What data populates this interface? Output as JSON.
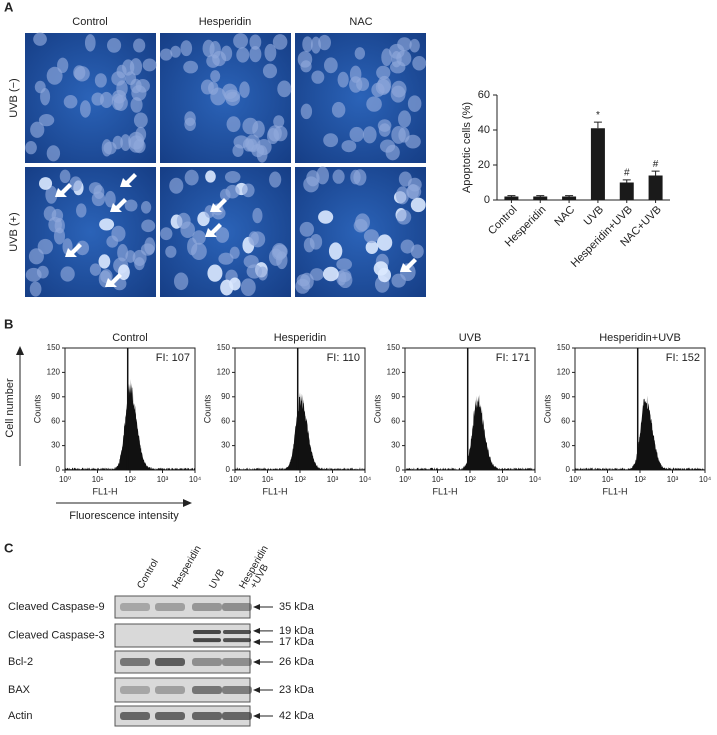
{
  "panel_labels": [
    "A",
    "B",
    "C"
  ],
  "microscopy": {
    "columns": [
      "Control",
      "Hesperidin",
      "NAC"
    ],
    "rows": [
      "UVB (−)",
      "UVB (+)"
    ]
  },
  "flow_axes": {
    "y_label": "Cell number",
    "x_label": "Fluorescence intensity"
  },
  "chart_data": [
    {
      "type": "bar",
      "ylabel": "Apoptotic cells (%)",
      "categories": [
        "Control",
        "Hesperidin",
        "NAC",
        "UVB",
        "Hesperidin+UVB",
        "NAC+UVB"
      ],
      "values": [
        2,
        2,
        2,
        41,
        10,
        14
      ],
      "errors": [
        0.5,
        0.5,
        0.5,
        3.5,
        1.5,
        2.5
      ],
      "annotations": [
        {
          "category": "UVB",
          "text": "*"
        },
        {
          "category": "Hesperidin+UVB",
          "text": "#"
        },
        {
          "category": "NAC+UVB",
          "text": "#"
        }
      ],
      "color": "#1a1a1a",
      "ylim": [
        0,
        60
      ],
      "yticks": [
        0,
        20,
        40,
        60
      ]
    },
    {
      "type": "histogram",
      "title": "Control",
      "annotation": "FI: 107",
      "xlabel": "FL1-H",
      "ylabel": "Counts",
      "peak_x": 100,
      "peak_counts": 110,
      "gate": 85,
      "log_x": true,
      "xlim": [
        1,
        10000
      ],
      "xticks": [
        {
          "value": 1,
          "label": "10⁰"
        },
        {
          "value": 10,
          "label": "10¹"
        },
        {
          "value": 100,
          "label": "10²"
        },
        {
          "value": 1000,
          "label": "10³"
        },
        {
          "value": 10000,
          "label": "10⁴"
        }
      ],
      "ylim": [
        0,
        150
      ],
      "yticks": [
        0,
        30,
        60,
        90,
        120,
        150
      ]
    },
    {
      "type": "histogram",
      "title": "Hesperidin",
      "annotation": "FI: 110",
      "xlabel": "FL1-H",
      "ylabel": "Counts",
      "peak_x": 105,
      "peak_counts": 95,
      "gate": 85,
      "log_x": true,
      "xlim": [
        1,
        10000
      ],
      "xticks": [
        {
          "value": 1,
          "label": "10⁰"
        },
        {
          "value": 10,
          "label": "10¹"
        },
        {
          "value": 100,
          "label": "10²"
        },
        {
          "value": 1000,
          "label": "10³"
        },
        {
          "value": 10000,
          "label": "10⁴"
        }
      ],
      "ylim": [
        0,
        150
      ],
      "yticks": [
        0,
        30,
        60,
        90,
        120,
        150
      ]
    },
    {
      "type": "histogram",
      "title": "UVB",
      "annotation": "FI: 171",
      "xlabel": "FL1-H",
      "ylabel": "Counts",
      "peak_x": 170,
      "peak_counts": 95,
      "gate": 85,
      "log_x": true,
      "xlim": [
        1,
        10000
      ],
      "xticks": [
        {
          "value": 1,
          "label": "10⁰"
        },
        {
          "value": 10,
          "label": "10¹"
        },
        {
          "value": 100,
          "label": "10²"
        },
        {
          "value": 1000,
          "label": "10³"
        },
        {
          "value": 10000,
          "label": "10⁴"
        }
      ],
      "ylim": [
        0,
        150
      ],
      "yticks": [
        0,
        30,
        60,
        90,
        120,
        150
      ]
    },
    {
      "type": "histogram",
      "title": "Hesperidin+UVB",
      "annotation": "FI: 152",
      "xlabel": "FL1-H",
      "ylabel": "Counts",
      "peak_x": 150,
      "peak_counts": 95,
      "gate": 85,
      "log_x": true,
      "xlim": [
        1,
        10000
      ],
      "xticks": [
        {
          "value": 1,
          "label": "10⁰"
        },
        {
          "value": 10,
          "label": "10¹"
        },
        {
          "value": 100,
          "label": "10²"
        },
        {
          "value": 1000,
          "label": "10³"
        },
        {
          "value": 10000,
          "label": "10⁴"
        }
      ],
      "ylim": [
        0,
        150
      ],
      "yticks": [
        0,
        30,
        60,
        90,
        120,
        150
      ]
    }
  ],
  "western": {
    "lanes": [
      "Control",
      "Hesperidin",
      "UVB",
      [
        "Hesperidin",
        "+UVB"
      ]
    ],
    "rows": [
      {
        "label": "Cleaved Caspase-9",
        "markers": [
          "35 kDa"
        ]
      },
      {
        "label": "Cleaved Caspase-3",
        "markers": [
          "19 kDa",
          "17 kDa"
        ]
      },
      {
        "label": "Bcl-2",
        "markers": [
          "26 kDa"
        ]
      },
      {
        "label": "BAX",
        "markers": [
          "23 kDa"
        ]
      },
      {
        "label": "Actin",
        "markers": [
          "42 kDa"
        ]
      }
    ]
  }
}
